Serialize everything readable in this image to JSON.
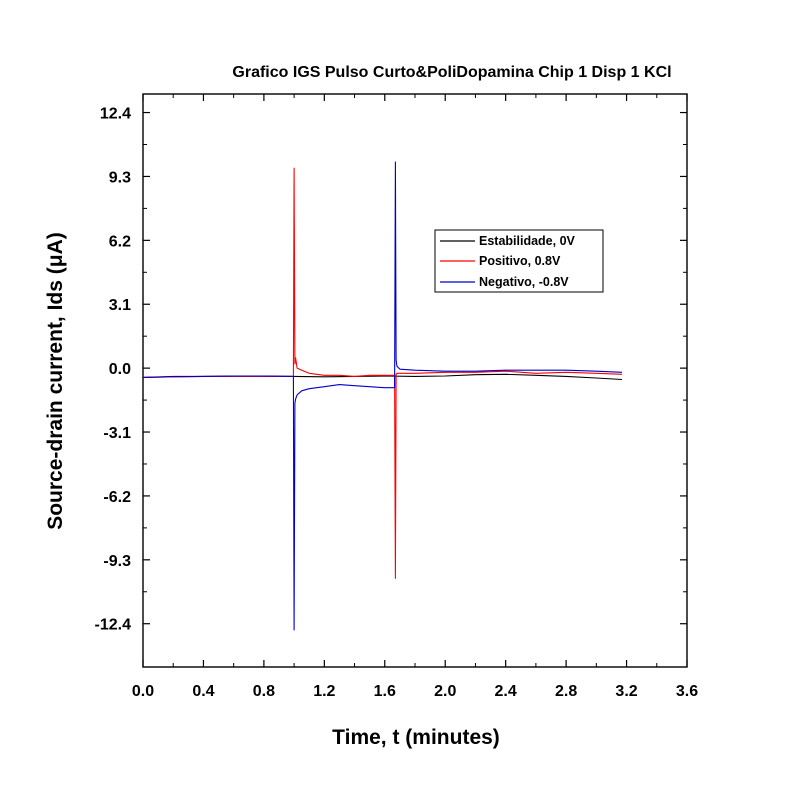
{
  "chart_data": {
    "type": "line",
    "title": "Grafico IGS Pulso Curto&PoliDopamina Chip 1 Disp 1 KCl",
    "xlabel": "Time, t (minutes)",
    "ylabel": "Source-drain current, Ids (μA)",
    "xlim": [
      0.0,
      3.6
    ],
    "ylim": [
      -14.5,
      13.3
    ],
    "x_ticks": [
      "0.0",
      "0.4",
      "0.8",
      "1.2",
      "1.6",
      "2.0",
      "2.4",
      "2.8",
      "3.2",
      "3.6"
    ],
    "x_tick_values": [
      0.0,
      0.4,
      0.8,
      1.2,
      1.6,
      2.0,
      2.4,
      2.8,
      3.2,
      3.6
    ],
    "y_ticks": [
      "12.4",
      "9.3",
      "6.2",
      "3.1",
      "0.0",
      "-3.1",
      "-6.2",
      "-9.3",
      "-12.4"
    ],
    "y_tick_values": [
      12.4,
      9.3,
      6.2,
      3.1,
      0.0,
      -3.1,
      -6.2,
      -9.3,
      -12.4
    ],
    "grid": false,
    "legend_position": "upper-right",
    "series": [
      {
        "name": "Estabilidade, 0V",
        "color": "#000000",
        "x": [
          0.0,
          0.2,
          0.4,
          0.6,
          0.8,
          1.0,
          1.2,
          1.4,
          1.6,
          1.8,
          2.0,
          2.2,
          2.4,
          2.6,
          2.8,
          3.0,
          3.17
        ],
        "y": [
          -0.45,
          -0.42,
          -0.4,
          -0.38,
          -0.38,
          -0.4,
          -0.42,
          -0.4,
          -0.38,
          -0.4,
          -0.38,
          -0.32,
          -0.3,
          -0.35,
          -0.4,
          -0.48,
          -0.55
        ]
      },
      {
        "name": "Positivo, 0.8V",
        "color": "#ff0000",
        "x": [
          0.0,
          0.2,
          0.4,
          0.6,
          0.8,
          0.995,
          1.0,
          1.005,
          1.01,
          1.02,
          1.05,
          1.1,
          1.2,
          1.3,
          1.4,
          1.5,
          1.6,
          1.665,
          1.67,
          1.675,
          1.68,
          1.7,
          1.8,
          2.0,
          2.2,
          2.4,
          2.6,
          2.8,
          3.0,
          3.17
        ],
        "y": [
          -0.45,
          -0.42,
          -0.4,
          -0.4,
          -0.4,
          -0.4,
          9.7,
          0.2,
          0.5,
          0.0,
          -0.1,
          -0.25,
          -0.35,
          -0.35,
          -0.4,
          -0.35,
          -0.35,
          -0.35,
          -10.2,
          -0.3,
          -0.25,
          -0.25,
          -0.25,
          -0.2,
          -0.2,
          -0.15,
          -0.25,
          -0.2,
          -0.25,
          -0.3
        ]
      },
      {
        "name": "Negativo, -0.8V",
        "color": "#0000cc",
        "x": [
          0.0,
          0.2,
          0.4,
          0.6,
          0.8,
          0.995,
          1.0,
          1.005,
          1.01,
          1.02,
          1.05,
          1.1,
          1.2,
          1.3,
          1.4,
          1.5,
          1.6,
          1.665,
          1.67,
          1.675,
          1.68,
          1.7,
          1.8,
          2.0,
          2.2,
          2.4,
          2.6,
          2.8,
          3.0,
          3.17
        ],
        "y": [
          -0.45,
          -0.4,
          -0.4,
          -0.38,
          -0.38,
          -0.4,
          -12.7,
          -1.7,
          -1.5,
          -1.3,
          -1.1,
          -1.0,
          -0.9,
          -0.8,
          -0.85,
          -0.9,
          -0.95,
          -0.95,
          10.0,
          0.4,
          0.1,
          -0.05,
          -0.1,
          -0.15,
          -0.15,
          -0.1,
          -0.1,
          -0.1,
          -0.15,
          -0.2
        ]
      }
    ]
  }
}
